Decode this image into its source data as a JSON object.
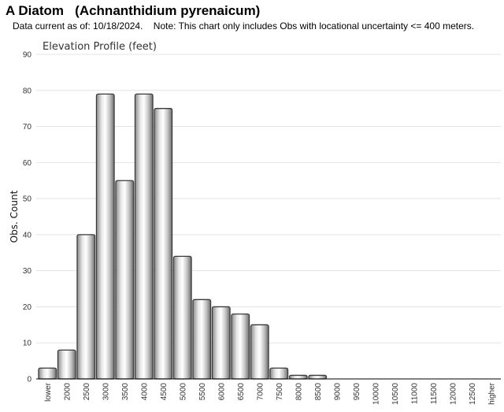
{
  "header": {
    "title": "A Diatom   (Achnanthidium pyrenaicum)",
    "subtitle": "Data current as of: 10/18/2024.    Note: This chart only includes Obs with locational uncertainty <= 400 meters."
  },
  "chart_data": {
    "type": "bar",
    "title": "Elevation Profile (feet)",
    "xlabel": "",
    "ylabel": "Obs. Count",
    "ylim": [
      0,
      90
    ],
    "yticks": [
      0,
      10,
      20,
      30,
      40,
      50,
      60,
      70,
      80,
      90
    ],
    "grid": true,
    "categories": [
      "lower",
      "2000",
      "2500",
      "3000",
      "3500",
      "4000",
      "4500",
      "5000",
      "5500",
      "6000",
      "6500",
      "7000",
      "7500",
      "8000",
      "8500",
      "9000",
      "9500",
      "10000",
      "10500",
      "11000",
      "11500",
      "12000",
      "12500",
      "higher"
    ],
    "values": [
      3,
      8,
      40,
      79,
      55,
      79,
      75,
      34,
      22,
      20,
      18,
      15,
      3,
      1,
      1,
      0,
      0,
      0,
      0,
      0,
      0,
      0,
      0,
      0
    ]
  }
}
